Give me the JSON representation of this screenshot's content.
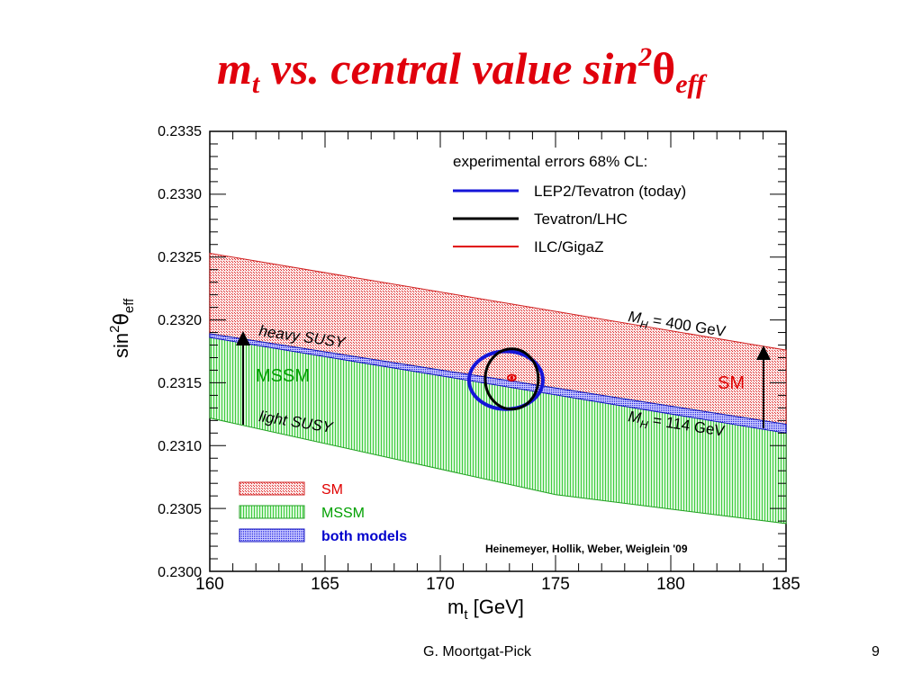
{
  "slide": {
    "title_main": "m",
    "title_sub": "t",
    "title_mid": " vs. central  value sin",
    "title_sup": "2",
    "title_theta": "θ",
    "title_sub2": "eff",
    "author": "G. Moortgat-Pick",
    "page": "9"
  },
  "chart_data": {
    "type": "area",
    "xlabel": "m",
    "xlabel_sub": "t",
    "xlabel_unit": " [GeV]",
    "ylabel": "sin",
    "ylabel_sup": "2",
    "ylabel_theta": "θ",
    "ylabel_sub": "eff",
    "xlim": [
      160,
      185
    ],
    "ylim": [
      0.23,
      0.2335
    ],
    "xticks": [
      160,
      165,
      170,
      175,
      180,
      185
    ],
    "yticks": [
      "0.2300",
      "0.2305",
      "0.2310",
      "0.2315",
      "0.2320",
      "0.2325",
      "0.2330",
      "0.2335"
    ],
    "colors": {
      "SM": "#e03030",
      "MSSM": "#20c020",
      "both": "#2020e0",
      "ellipse_today": "#1515d8",
      "ellipse_lhc": "#000000",
      "ellipse_ilc": "#e00000",
      "text_green": "#00a000",
      "text_red": "#e00000",
      "text_blue": "#0000cc"
    },
    "bands": {
      "SM_top": {
        "x": [
          160,
          185
        ],
        "y": [
          0.23253,
          0.23176
        ]
      },
      "both_top": {
        "x": [
          160,
          185
        ],
        "y": [
          0.23189,
          0.23117
        ]
      },
      "both_bottom": {
        "x": [
          160,
          185
        ],
        "y": [
          0.23186,
          0.2311
        ]
      },
      "MSSM_bottom": {
        "x": [
          160,
          175,
          185
        ],
        "y": [
          0.23122,
          0.23061,
          0.23038
        ]
      }
    },
    "central_point": {
      "x": 173.1,
      "y": 0.23154
    },
    "ellipses": [
      {
        "name": "LEP2/Tevatron (today)",
        "cx": 172.85,
        "cy": 0.23152,
        "rx": 1.6,
        "ry": 0.00023
      },
      {
        "name": "Tevatron/LHC",
        "cx": 173.1,
        "cy": 0.23153,
        "rx": 1.15,
        "ry": 0.00024
      },
      {
        "name": "ILC/GigaZ",
        "cx": 173.1,
        "cy": 0.23154,
        "rx": 0.17,
        "ry": 2.3e-05
      }
    ],
    "legend_errors": {
      "title": "experimental errors 68% CL:",
      "entries": [
        {
          "label": "LEP2/Tevatron (today)",
          "color": "#1515d8"
        },
        {
          "label": "Tevatron/LHC",
          "color": "#000000"
        },
        {
          "label": "ILC/GigaZ",
          "color": "#e00000"
        }
      ]
    },
    "legend_models": [
      {
        "label": "SM",
        "color": "#e03030",
        "text_color": "#e00000"
      },
      {
        "label": "MSSM",
        "color": "#20c020",
        "text_color": "#00a000"
      },
      {
        "label": "both models",
        "color": "#2020e0",
        "text_color": "#0000cc"
      }
    ],
    "annotations": {
      "mh400_a": "M",
      "mh400_b": "H",
      "mh400_c": " = 400 GeV",
      "mh114_a": "M",
      "mh114_b": "H",
      "mh114_c": " = 114 GeV",
      "heavy": "heavy SUSY",
      "light": "light SUSY",
      "mssm": "MSSM",
      "sm": "SM",
      "credit": "Heinemeyer, Hollik, Weber, Weiglein '09"
    }
  }
}
